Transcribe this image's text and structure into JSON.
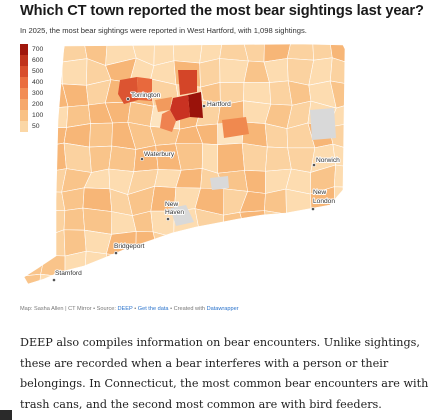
{
  "article": {
    "headline": "Which CT town reported the most bear sightings last year?",
    "subhead": "In 2025, the most bear sightings were reported in West Hartford, with 1,098 sightings."
  },
  "legend": {
    "items": [
      {
        "label": "700",
        "color": "#a0170c"
      },
      {
        "label": "600",
        "color": "#c0331c"
      },
      {
        "label": "500",
        "color": "#d84e2c"
      },
      {
        "label": "400",
        "color": "#ea6e3f"
      },
      {
        "label": "300",
        "color": "#f28d55"
      },
      {
        "label": "200",
        "color": "#f6a86c"
      },
      {
        "label": "100",
        "color": "#f9c185"
      },
      {
        "label": "50",
        "color": "#fbd7a6"
      }
    ]
  },
  "map": {
    "cities": [
      {
        "name": "Torrington"
      },
      {
        "name": "Hartford"
      },
      {
        "name": "Waterbury"
      },
      {
        "name": "Norwich"
      },
      {
        "name": "New London"
      },
      {
        "name": "New Haven"
      },
      {
        "name": "Bridgeport"
      },
      {
        "name": "Stamford"
      }
    ]
  },
  "footer": {
    "prefix": "Map: Sasha Allen | CT Mirror • Source: ",
    "source_link": "DEEP",
    "sep1": " • ",
    "data_link": "Get the data",
    "sep2": " • Created with ",
    "tool_link": "Datawrapper"
  },
  "body": {
    "paragraph": "DEEP also compiles information on bear encounters. Unlike sightings, these are recorded when a bear interferes with a person or their belongings. In Connecticut, the most common bear encounters are with trash cans, and the second most common are with bird feeders."
  }
}
